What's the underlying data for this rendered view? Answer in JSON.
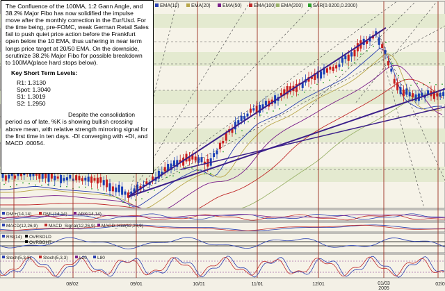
{
  "colors": {
    "panel_bg": "#f6f3e8",
    "price_band": "#e4ead0",
    "bull_candle": "#1a3fb5",
    "bear_candle": "#c81e1e",
    "gann_line": "#3b1f8a",
    "ema10": "#2a3fb0",
    "ema20": "#b8a64a",
    "ema50": "#7a1e8a",
    "ema100": "#c02a2a",
    "ema200": "#9ab26a",
    "sar": "#2ea02e",
    "vline": "#9b2d20"
  },
  "note": {
    "para1": "The Confluence of the 100MA, 1:2 Gann Angle, and 38.2% Major Fibo has now solidified the impulse move after the monthly correction in the Eur/Usd. For the time being, pre-FOMC, weak German Retail Sales fail to push quiet price action before the Frankfurt open below the 10 EMA, thus ushering in near term longs price target at 20/50 EMA. On the downside, scrutinize 38.2% Major Fibo for possible breakdown to 100MA(place hard stops below).",
    "key_title": "Key Short Term Levels:",
    "levels": [
      "R1: 1.3130",
      "Spot: 1.3040",
      "S1: 1.3019",
      "S2: 1.2950"
    ],
    "para2": "Despite the consolidation period as of late, %K is showing bullish crossing above mean, with relative strength mirroring signal for the first time in ten days. -DI converging with +DI, and MACD .00054."
  },
  "chart_data": {
    "type": "candlestick",
    "x_tick_labels": [
      "08/02",
      "09/01",
      "10/01",
      "11/01",
      "12/01",
      "01/03",
      "02/0"
    ],
    "year_label": "2005",
    "legend_main": [
      {
        "name": "EMA(10)",
        "color": "#2a3fb0"
      },
      {
        "name": "EMA(20)",
        "color": "#b8a64a"
      },
      {
        "name": "EMA(50)",
        "color": "#7a1e8a"
      },
      {
        "name": "EMA(100)",
        "color": "#c02a2a"
      },
      {
        "name": "EMA(200)",
        "color": "#9ab26a"
      },
      {
        "name": "SAR(0.0200,0.2000)",
        "color": "#2ea02e"
      }
    ],
    "dmi_legend": [
      "DMI+(14,14)",
      "DMI-(14,14)",
      "ADX(14,14)"
    ],
    "macd_legend": [
      "MACD(12,26,9)",
      "MACD_Signal(12,26,9)",
      "MACD_Hist(12,26,9)"
    ],
    "rsi_legend": [
      "RSI(14)",
      "OVRSOLD",
      "OVRBGHT"
    ],
    "stoch_legend": [
      "Stoch(5,3,3)",
      "Stoch(5,3,3)",
      "L20",
      "L80"
    ]
  }
}
